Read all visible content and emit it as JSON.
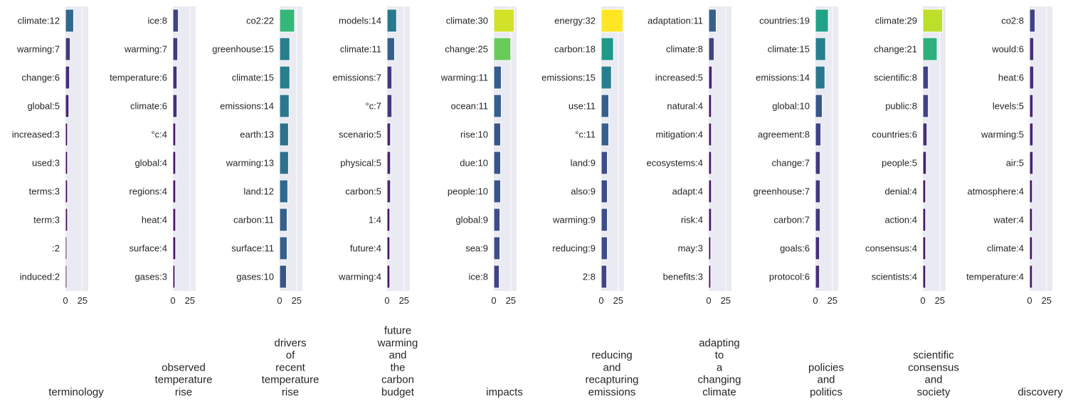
{
  "chart_data": {
    "type": "bar",
    "orientation": "horizontal",
    "colormap": "viridis",
    "color_range": [
      2,
      32
    ],
    "xlim": [
      0,
      33.6
    ],
    "xticks": [
      0,
      25
    ],
    "xtick_labels": [
      "0",
      "25"
    ],
    "grid": true,
    "background": "#eaeaf2",
    "panels": [
      {
        "title": "terminology",
        "labels": [
          "climate:12",
          "warming:7",
          "change:6",
          "global:5",
          "increased:3",
          "used:3",
          "terms:3",
          "term:3",
          ":2",
          "induced:2"
        ],
        "values": [
          12,
          7,
          6,
          5,
          3,
          3,
          3,
          3,
          2,
          2
        ]
      },
      {
        "title": "observed temperature rise",
        "labels": [
          "ice:8",
          "warming:7",
          "temperature:6",
          "climate:6",
          "°c:4",
          "global:4",
          "regions:4",
          "heat:4",
          "surface:4",
          "gases:3"
        ],
        "values": [
          8,
          7,
          6,
          6,
          4,
          4,
          4,
          4,
          4,
          3
        ]
      },
      {
        "title": "drivers of recent temperature rise",
        "labels": [
          "co2:22",
          "greenhouse:15",
          "climate:15",
          "emissions:14",
          "earth:13",
          "warming:13",
          "land:12",
          "carbon:11",
          "surface:11",
          "gases:10"
        ],
        "values": [
          22,
          15,
          15,
          14,
          13,
          13,
          12,
          11,
          11,
          10
        ]
      },
      {
        "title": "future warming and the carbon budget",
        "labels": [
          "models:14",
          "climate:11",
          "emissions:7",
          "°c:7",
          "scenario:5",
          "physical:5",
          "carbon:5",
          "1:4",
          "future:4",
          "warming:4"
        ],
        "values": [
          14,
          11,
          7,
          7,
          5,
          5,
          5,
          4,
          4,
          4
        ]
      },
      {
        "title": "impacts",
        "labels": [
          "climate:30",
          "change:25",
          "warming:11",
          "ocean:11",
          "rise:10",
          "due:10",
          "people:10",
          "global:9",
          "sea:9",
          "ice:8"
        ],
        "values": [
          30,
          25,
          11,
          11,
          10,
          10,
          10,
          9,
          9,
          8
        ]
      },
      {
        "title": "reducing and recapturing emissions",
        "labels": [
          "energy:32",
          "carbon:18",
          "emissions:15",
          "use:11",
          "°c:11",
          "land:9",
          "also:9",
          "warming:9",
          "reducing:9",
          "2:8"
        ],
        "values": [
          32,
          18,
          15,
          11,
          11,
          9,
          9,
          9,
          9,
          8
        ]
      },
      {
        "title": "adapting to a changing climate",
        "labels": [
          "adaptation:11",
          "climate:8",
          "increased:5",
          "natural:4",
          "mitigation:4",
          "ecosystems:4",
          "adapt:4",
          "risk:4",
          "may:3",
          "benefits:3"
        ],
        "values": [
          11,
          8,
          5,
          4,
          4,
          4,
          4,
          4,
          3,
          3
        ]
      },
      {
        "title": "policies and politics",
        "labels": [
          "countries:19",
          "climate:15",
          "emissions:14",
          "global:10",
          "agreement:8",
          "change:7",
          "greenhouse:7",
          "carbon:7",
          "goals:6",
          "protocol:6"
        ],
        "values": [
          19,
          15,
          14,
          10,
          8,
          7,
          7,
          7,
          6,
          6
        ]
      },
      {
        "title": "scientific consensus and society",
        "labels": [
          "climate:29",
          "change:21",
          "scientific:8",
          "public:8",
          "countries:6",
          "people:5",
          "denial:4",
          "action:4",
          "consensus:4",
          "scientists:4"
        ],
        "values": [
          29,
          21,
          8,
          8,
          6,
          5,
          4,
          4,
          4,
          4
        ]
      },
      {
        "title": "discovery",
        "labels": [
          "co2:8",
          "would:6",
          "heat:6",
          "levels:5",
          "warming:5",
          "air:5",
          "atmosphere:4",
          "water:4",
          "climate:4",
          "temperature:4"
        ],
        "values": [
          8,
          6,
          6,
          5,
          5,
          5,
          4,
          4,
          4,
          4
        ]
      }
    ]
  }
}
